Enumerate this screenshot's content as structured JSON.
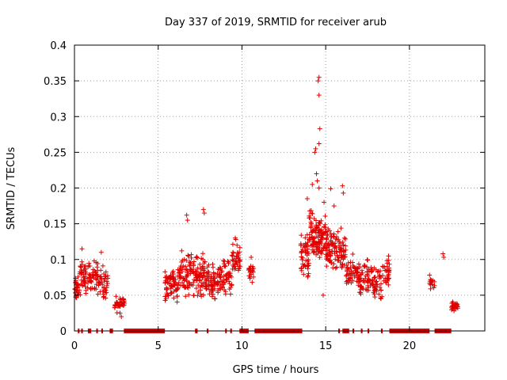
{
  "chart_data": {
    "type": "scatter",
    "title": "Day 337 of 2019, SRMTID for receiver arub",
    "xlabel": "GPS time / hours",
    "ylabel": "SRMTID / TECUs",
    "xlim": [
      0,
      24.5
    ],
    "ylim": [
      0,
      0.4
    ],
    "xticks": [
      0,
      5,
      10,
      15,
      20
    ],
    "xtick_labels": [
      "0",
      "5",
      "10",
      "15",
      "20"
    ],
    "yticks": [
      0,
      0.05,
      0.1,
      0.15,
      0.2,
      0.25,
      0.3,
      0.35,
      0.4
    ],
    "ytick_labels": [
      "0",
      "0.05",
      "0.1",
      "0.15",
      "0.2",
      "0.25",
      "0.3",
      "0.35",
      "0.4"
    ],
    "grid": true,
    "marker": "+",
    "color": "#e00000",
    "clusters": [
      {
        "x_start": 0.0,
        "x_end": 0.3,
        "y_center": 0.058,
        "y_spread": 0.018,
        "count": 30
      },
      {
        "x_start": 0.3,
        "x_end": 0.8,
        "y_center": 0.075,
        "y_spread": 0.025,
        "count": 40
      },
      {
        "x_start": 0.8,
        "x_end": 1.4,
        "y_center": 0.078,
        "y_spread": 0.022,
        "count": 45
      },
      {
        "x_start": 1.4,
        "x_end": 2.0,
        "y_center": 0.065,
        "y_spread": 0.025,
        "count": 40
      },
      {
        "x_start": 2.4,
        "x_end": 3.0,
        "y_center": 0.038,
        "y_spread": 0.012,
        "count": 40
      },
      {
        "x_start": 5.4,
        "x_end": 6.2,
        "y_center": 0.065,
        "y_spread": 0.025,
        "count": 70
      },
      {
        "x_start": 6.2,
        "x_end": 7.0,
        "y_center": 0.082,
        "y_spread": 0.03,
        "count": 70
      },
      {
        "x_start": 7.0,
        "x_end": 7.8,
        "y_center": 0.078,
        "y_spread": 0.03,
        "count": 70
      },
      {
        "x_start": 7.8,
        "x_end": 8.6,
        "y_center": 0.068,
        "y_spread": 0.025,
        "count": 70
      },
      {
        "x_start": 8.6,
        "x_end": 9.4,
        "y_center": 0.075,
        "y_spread": 0.025,
        "count": 60
      },
      {
        "x_start": 9.4,
        "x_end": 9.9,
        "y_center": 0.1,
        "y_spread": 0.025,
        "count": 40
      },
      {
        "x_start": 10.4,
        "x_end": 10.7,
        "y_center": 0.08,
        "y_spread": 0.015,
        "count": 20
      },
      {
        "x_start": 13.5,
        "x_end": 14.0,
        "y_center": 0.1,
        "y_spread": 0.035,
        "count": 50
      },
      {
        "x_start": 14.0,
        "x_end": 14.5,
        "y_center": 0.13,
        "y_spread": 0.04,
        "count": 60
      },
      {
        "x_start": 14.5,
        "x_end": 15.0,
        "y_center": 0.13,
        "y_spread": 0.035,
        "count": 60
      },
      {
        "x_start": 15.0,
        "x_end": 15.6,
        "y_center": 0.115,
        "y_spread": 0.03,
        "count": 60
      },
      {
        "x_start": 15.6,
        "x_end": 16.2,
        "y_center": 0.11,
        "y_spread": 0.03,
        "count": 50
      },
      {
        "x_start": 16.2,
        "x_end": 17.0,
        "y_center": 0.08,
        "y_spread": 0.025,
        "count": 60
      },
      {
        "x_start": 17.0,
        "x_end": 17.8,
        "y_center": 0.075,
        "y_spread": 0.025,
        "count": 60
      },
      {
        "x_start": 17.8,
        "x_end": 18.4,
        "y_center": 0.065,
        "y_spread": 0.025,
        "count": 40
      },
      {
        "x_start": 18.4,
        "x_end": 18.8,
        "y_center": 0.085,
        "y_spread": 0.025,
        "count": 30
      },
      {
        "x_start": 21.2,
        "x_end": 21.5,
        "y_center": 0.07,
        "y_spread": 0.015,
        "count": 15
      },
      {
        "x_start": 22.5,
        "x_end": 22.9,
        "y_center": 0.035,
        "y_spread": 0.01,
        "count": 30
      }
    ],
    "highlights": [
      {
        "x": 14.6,
        "y": 0.355
      },
      {
        "x": 14.55,
        "y": 0.35
      },
      {
        "x": 14.6,
        "y": 0.33
      },
      {
        "x": 14.65,
        "y": 0.283
      },
      {
        "x": 14.6,
        "y": 0.262
      },
      {
        "x": 14.4,
        "y": 0.255
      },
      {
        "x": 14.35,
        "y": 0.25
      },
      {
        "x": 14.45,
        "y": 0.22
      },
      {
        "x": 14.5,
        "y": 0.21
      },
      {
        "x": 14.2,
        "y": 0.205
      },
      {
        "x": 14.6,
        "y": 0.2
      },
      {
        "x": 15.3,
        "y": 0.199
      },
      {
        "x": 16.0,
        "y": 0.203
      },
      {
        "x": 16.05,
        "y": 0.193
      },
      {
        "x": 13.9,
        "y": 0.185
      },
      {
        "x": 14.9,
        "y": 0.18
      },
      {
        "x": 15.5,
        "y": 0.175
      },
      {
        "x": 14.05,
        "y": 0.168
      },
      {
        "x": 7.7,
        "y": 0.17
      },
      {
        "x": 7.75,
        "y": 0.165
      },
      {
        "x": 6.7,
        "y": 0.162
      },
      {
        "x": 6.75,
        "y": 0.155
      },
      {
        "x": 14.85,
        "y": 0.05
      },
      {
        "x": 0.45,
        "y": 0.115
      },
      {
        "x": 1.6,
        "y": 0.11
      },
      {
        "x": 22.0,
        "y": 0.108
      },
      {
        "x": 22.05,
        "y": 0.103
      },
      {
        "x": 10.55,
        "y": 0.103
      },
      {
        "x": 9.6,
        "y": 0.13
      },
      {
        "x": 2.8,
        "y": 0.02
      }
    ],
    "zero_runs": [
      [
        0.2,
        0.3
      ],
      [
        0.4,
        0.5
      ],
      [
        0.8,
        1.0
      ],
      [
        1.3,
        1.4
      ],
      [
        1.6,
        1.7
      ],
      [
        2.1,
        2.3
      ],
      [
        2.95,
        5.4
      ],
      [
        7.2,
        7.35
      ],
      [
        7.9,
        8.0
      ],
      [
        9.0,
        9.05
      ],
      [
        9.3,
        9.4
      ],
      [
        9.85,
        10.4
      ],
      [
        10.75,
        13.6
      ],
      [
        15.75,
        15.85
      ],
      [
        16.0,
        16.4
      ],
      [
        16.6,
        16.7
      ],
      [
        17.1,
        17.2
      ],
      [
        17.5,
        17.6
      ],
      [
        18.3,
        18.4
      ],
      [
        18.8,
        21.2
      ],
      [
        21.5,
        22.5
      ]
    ]
  }
}
